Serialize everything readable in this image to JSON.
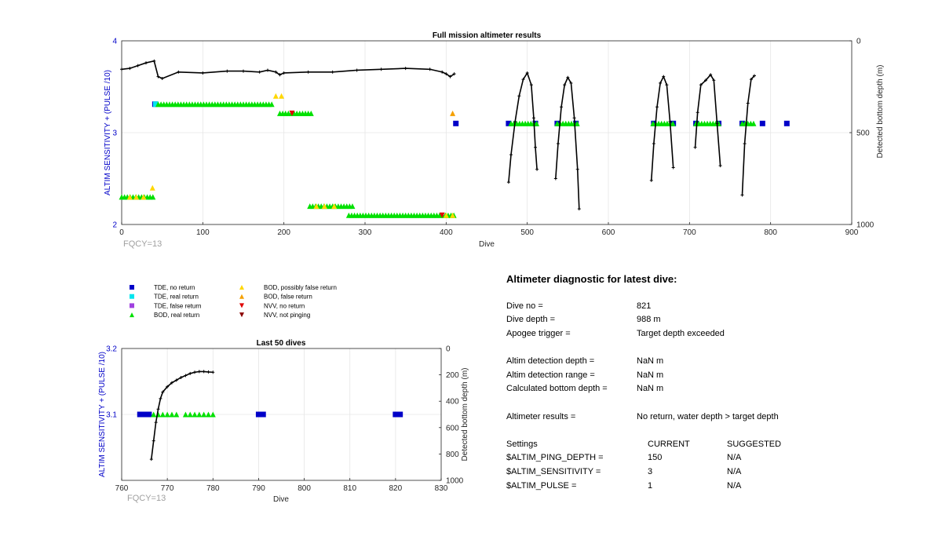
{
  "chart_data": [
    {
      "type": "scatter",
      "title": "Full mission altimeter results",
      "xlabel": "Dive",
      "ylabel": "ALTIM SENSITIVITY + (PULSE /10)",
      "y2label": "Detected bottom depth (m)",
      "xlim": [
        0,
        900
      ],
      "ylim": [
        2,
        4
      ],
      "y2lim": [
        1000,
        0
      ],
      "y2_reversed": true,
      "xticks": [
        "0",
        "100",
        "200",
        "300",
        "400",
        "500",
        "600",
        "700",
        "800",
        "900"
      ],
      "yticks": [
        "2",
        "3",
        "4"
      ],
      "y2ticks": [
        "0",
        "500",
        "1000"
      ],
      "grid": true,
      "footnote": "FQCY=13",
      "bottom_depth_segments": [
        {
          "x": [
            0,
            10,
            20,
            30,
            40,
            45,
            50,
            70,
            100,
            130,
            150,
            170,
            180,
            190,
            195,
            200,
            230,
            260,
            290,
            320,
            350,
            380,
            395,
            400,
            405,
            410
          ],
          "depth": [
            155,
            150,
            135,
            120,
            110,
            195,
            205,
            170,
            175,
            165,
            165,
            170,
            160,
            170,
            185,
            175,
            170,
            170,
            160,
            155,
            150,
            155,
            170,
            180,
            195,
            180
          ]
        },
        {
          "x": [
            477,
            480,
            485,
            490,
            495,
            500,
            505,
            508,
            510,
            512
          ],
          "depth": [
            770,
            620,
            440,
            300,
            210,
            175,
            240,
            420,
            580,
            700
          ]
        },
        {
          "x": [
            535,
            538,
            542,
            546,
            550,
            554,
            558,
            562,
            564
          ],
          "depth": [
            750,
            560,
            360,
            240,
            200,
            230,
            420,
            700,
            915
          ]
        },
        {
          "x": [
            653,
            656,
            660,
            664,
            668,
            672,
            676,
            680
          ],
          "depth": [
            760,
            560,
            360,
            230,
            195,
            240,
            440,
            690
          ]
        },
        {
          "x": [
            707,
            710,
            714,
            720,
            726,
            730,
            734,
            738
          ],
          "depth": [
            580,
            390,
            240,
            215,
            185,
            215,
            450,
            680
          ]
        },
        {
          "x": [
            765,
            768,
            772,
            776,
            780
          ],
          "depth": [
            840,
            560,
            340,
            210,
            190
          ]
        }
      ],
      "series": [
        {
          "name": "TDE, no return",
          "color": "#0000c8",
          "marker": "square",
          "points": [
            [
              41,
              3.31
            ],
            [
              412,
              3.1
            ],
            [
              477,
              3.1
            ],
            [
              510,
              3.1
            ],
            [
              537,
              3.1
            ],
            [
              560,
              3.1
            ],
            [
              656,
              3.1
            ],
            [
              680,
              3.1
            ],
            [
              708,
              3.1
            ],
            [
              736,
              3.1
            ],
            [
              765,
              3.1
            ],
            [
              790,
              3.1
            ],
            [
              820,
              3.1
            ]
          ]
        },
        {
          "name": "TDE, real return",
          "color": "#00e5ee",
          "marker": "square",
          "points": [
            [
              42,
              3.31
            ]
          ]
        },
        {
          "name": "BOD, real return",
          "color": "#00e000",
          "marker": "triangle-up",
          "ranges": [
            [
              0,
              40,
              2.3
            ],
            [
              45,
              185,
              3.31
            ],
            [
              195,
              235,
              3.21
            ],
            [
              232,
              285,
              2.2
            ],
            [
              280,
              410,
              2.1
            ],
            [
              480,
              512,
              3.1
            ],
            [
              537,
              562,
              3.1
            ],
            [
              655,
              680,
              3.1
            ],
            [
              708,
              738,
              3.1
            ],
            [
              765,
              780,
              3.1
            ]
          ]
        },
        {
          "name": "BOD, possibly false return",
          "color": "#ffd700",
          "marker": "triangle-up",
          "points": [
            [
              10,
              2.3
            ],
            [
              18,
              2.3
            ],
            [
              27,
              2.3
            ],
            [
              38,
              2.4
            ],
            [
              190,
              3.4
            ],
            [
              197,
              3.4
            ],
            [
              240,
              2.2
            ],
            [
              250,
              2.2
            ],
            [
              262,
              2.2
            ],
            [
              400,
              2.1
            ],
            [
              408,
              2.1
            ]
          ]
        },
        {
          "name": "BOD, false return",
          "color": "#f5a000",
          "marker": "triangle-up",
          "points": [
            [
              408,
              3.21
            ]
          ]
        },
        {
          "name": "NVV, no return",
          "color": "#e00000",
          "marker": "triangle-down",
          "points": [
            [
              210,
              3.21
            ],
            [
              395,
              2.1
            ]
          ]
        }
      ]
    },
    {
      "type": "scatter",
      "title": "Last 50 dives",
      "xlabel": "Dive",
      "ylabel": "ALTIM SENSITIVITY + (PULSE /10)",
      "y2label": "Detected bottom depth (m)",
      "xlim": [
        760,
        830
      ],
      "ylim": [
        3.0,
        3.2
      ],
      "y2lim": [
        1000,
        0
      ],
      "y2_reversed": true,
      "xticks": [
        "760",
        "770",
        "780",
        "790",
        "800",
        "810",
        "820",
        "830"
      ],
      "yticks": [
        "3.1",
        "3.2"
      ],
      "y2ticks": [
        "0",
        "200",
        "400",
        "600",
        "800",
        "1000"
      ],
      "grid": true,
      "footnote": "FQCY=13",
      "bottom_depth": {
        "x": [
          766.5,
          767,
          767.5,
          768,
          768.5,
          769,
          770,
          771,
          772,
          773,
          774,
          775,
          776,
          777,
          778,
          779,
          780
        ],
        "depth": [
          840,
          700,
          560,
          460,
          380,
          330,
          290,
          260,
          240,
          220,
          205,
          190,
          180,
          175,
          175,
          178,
          180
        ]
      },
      "series": [
        {
          "name": "TDE, no return",
          "color": "#0000c8",
          "marker": "square",
          "points": [
            [
              764,
              3.1
            ],
            [
              765,
              3.1
            ],
            [
              766,
              3.1
            ],
            [
              790,
              3.1
            ],
            [
              791,
              3.1
            ],
            [
              820,
              3.1
            ],
            [
              821,
              3.1
            ]
          ]
        },
        {
          "name": "BOD, real return",
          "color": "#00e000",
          "marker": "triangle-up",
          "points": [
            [
              767,
              3.1
            ],
            [
              768,
              3.1
            ],
            [
              769,
              3.1
            ],
            [
              770,
              3.1
            ],
            [
              771,
              3.1
            ],
            [
              772,
              3.1
            ],
            [
              774,
              3.1
            ],
            [
              775,
              3.1
            ],
            [
              776,
              3.1
            ],
            [
              777,
              3.1
            ],
            [
              778,
              3.1
            ],
            [
              779,
              3.1
            ],
            [
              780,
              3.1
            ]
          ]
        }
      ]
    }
  ],
  "legend": [
    {
      "label": "TDE, no return",
      "color": "#0000c8",
      "marker": "square"
    },
    {
      "label": "TDE, real return",
      "color": "#00e5ee",
      "marker": "square"
    },
    {
      "label": "TDE, false return",
      "color": "#a040e0",
      "marker": "square"
    },
    {
      "label": "BOD, real return",
      "color": "#00e000",
      "marker": "triangle-up"
    },
    {
      "label": "BOD, possibly false return",
      "color": "#ffd700",
      "marker": "triangle-up"
    },
    {
      "label": "BOD, false return",
      "color": "#f5a000",
      "marker": "triangle-up"
    },
    {
      "label": "NVV, no return",
      "color": "#e00000",
      "marker": "triangle-down"
    },
    {
      "label": "NVV, not pinging",
      "color": "#8b0000",
      "marker": "triangle-down"
    }
  ],
  "diagnostic": {
    "title": "Altimeter diagnostic for latest dive:",
    "dive_no_label": "Dive no =",
    "dive_no": "821",
    "dive_depth_label": "Dive depth =",
    "dive_depth": "988 m",
    "apogee_label": "Apogee trigger =",
    "apogee": "Target depth exceeded",
    "det_depth_label": "Altim detection depth =",
    "det_depth": "NaN m",
    "det_range_label": "Altim detection range =",
    "det_range": "NaN m",
    "calc_depth_label": "Calculated bottom depth =",
    "calc_depth": "NaN m",
    "results_label": "Altimeter results =",
    "results": "No return, water depth > target depth",
    "settings_label": "Settings",
    "current_label": "CURRENT",
    "suggested_label": "SUGGESTED",
    "settings": [
      {
        "name": "$ALTIM_PING_DEPTH =",
        "current": "150",
        "suggested": "N/A"
      },
      {
        "name": "$ALTIM_SENSITIVITY =",
        "current": "3",
        "suggested": "N/A"
      },
      {
        "name": "$ALTIM_PULSE =",
        "current": "1",
        "suggested": "N/A"
      }
    ]
  }
}
